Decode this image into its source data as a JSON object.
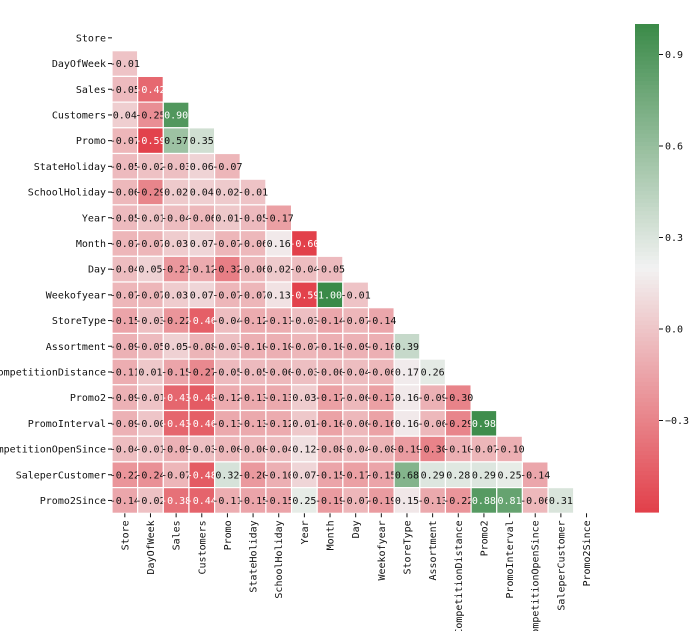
{
  "chart_data": {
    "type": "heatmap",
    "title": "",
    "variables": [
      "Store",
      "DayOfWeek",
      "Sales",
      "Customers",
      "Promo",
      "StateHoliday",
      "SchoolHoliday",
      "Year",
      "Month",
      "Day",
      "Weekofyear",
      "StoreType",
      "Assortment",
      "CompetitionDistance",
      "Promo2",
      "PromoInterval",
      "CompetitionOpenSince",
      "SaleperCustomer",
      "Promo2Since"
    ],
    "mask": "upper-triangle-including-diagonal",
    "values": [
      [],
      [
        -0.01
      ],
      [
        -0.05,
        -0.42
      ],
      [
        0.04,
        -0.25,
        0.9
      ],
      [
        -0.07,
        -0.59,
        0.57,
        0.35
      ],
      [
        -0.05,
        -0.02,
        -0.03,
        0.06,
        -0.07
      ],
      [
        -0.06,
        -0.29,
        0.02,
        0.04,
        0.02,
        -0.01
      ],
      [
        -0.05,
        -0.01,
        -0.04,
        -0.06,
        0.01,
        -0.05,
        -0.17
      ],
      [
        -0.07,
        -0.07,
        0.03,
        0.07,
        -0.07,
        -0.06,
        0.16,
        -0.6
      ],
      [
        -0.04,
        0.05,
        -0.21,
        -0.12,
        -0.32,
        -0.06,
        0.02,
        -0.04,
        -0.05
      ],
      [
        -0.07,
        -0.07,
        0.03,
        0.07,
        -0.07,
        -0.07,
        0.13,
        -0.59,
        1.0,
        -0.01
      ],
      [
        -0.15,
        -0.03,
        -0.22,
        -0.46,
        -0.04,
        -0.12,
        -0.11,
        -0.03,
        -0.14,
        -0.07,
        -0.14
      ],
      [
        -0.09,
        -0.05,
        0.05,
        -0.08,
        -0.03,
        -0.1,
        -0.1,
        -0.07,
        -0.1,
        -0.09,
        -0.1,
        0.39
      ],
      [
        -0.11,
        0.01,
        -0.15,
        -0.27,
        -0.05,
        -0.05,
        -0.06,
        -0.03,
        -0.06,
        -0.04,
        -0.06,
        0.17,
        0.26
      ],
      [
        -0.09,
        -0.01,
        -0.43,
        -0.48,
        -0.12,
        -0.13,
        -0.13,
        0.03,
        -0.17,
        -0.06,
        -0.17,
        0.16,
        -0.09,
        -0.3
      ],
      [
        -0.09,
        -0.0,
        -0.43,
        -0.46,
        -0.13,
        -0.13,
        -0.12,
        0.01,
        -0.16,
        -0.06,
        -0.16,
        0.16,
        -0.06,
        -0.29,
        0.98
      ],
      [
        -0.04,
        -0.01,
        -0.09,
        -0.03,
        -0.06,
        -0.06,
        -0.04,
        0.12,
        -0.08,
        -0.04,
        -0.08,
        -0.19,
        -0.3,
        -0.1,
        -0.07,
        -0.1
      ],
      [
        -0.22,
        -0.24,
        -0.07,
        -0.48,
        0.32,
        -0.2,
        -0.1,
        0.07,
        -0.15,
        -0.17,
        -0.15,
        0.68,
        0.29,
        0.28,
        0.29,
        0.25,
        -0.14
      ],
      [
        -0.14,
        -0.02,
        -0.38,
        -0.44,
        -0.11,
        -0.15,
        -0.15,
        0.25,
        -0.19,
        -0.07,
        -0.19,
        0.15,
        -0.13,
        -0.22,
        0.88,
        0.81,
        -0.06,
        0.31
      ]
    ],
    "value_range": [
      -0.6,
      1.0
    ],
    "colorbar": {
      "ticks": [
        0.9,
        0.6,
        0.3,
        0.0,
        -0.3
      ],
      "tick_labels": [
        "0.9",
        "0.6",
        "0.3",
        "0.0",
        "−0.3"
      ],
      "colors": {
        "low": "#e2404a",
        "mid": "#f2f2f2",
        "high": "#3a8a48"
      }
    },
    "grid": false,
    "legend": "colorbar-right"
  }
}
